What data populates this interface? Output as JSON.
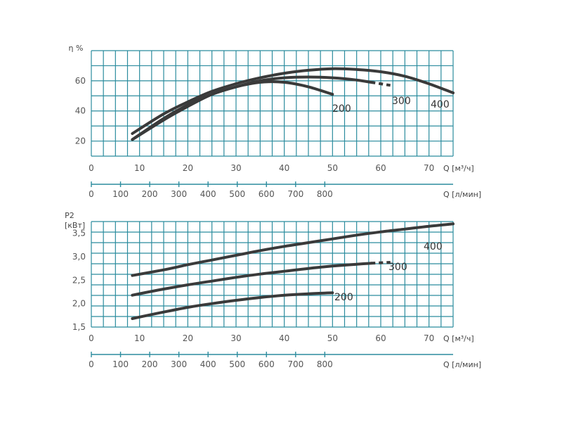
{
  "colors": {
    "grid": "#2b8c9e",
    "curve": "#3a3a3a",
    "text": "#555555"
  },
  "chart_data": [
    {
      "type": "line",
      "title": "",
      "ylabel": "η %",
      "xlabel": "Q [м³/ч]",
      "xlabel2": "Q [л/мин]",
      "xlim": [
        0,
        75
      ],
      "ylim": [
        10,
        80
      ],
      "grid": true,
      "yticks": [
        20,
        40,
        60
      ],
      "xticks": [
        0,
        10,
        20,
        30,
        40,
        50,
        60,
        70
      ],
      "xticks2": [
        0,
        100,
        200,
        300,
        400,
        500,
        600,
        700,
        800
      ],
      "series": [
        {
          "name": "200",
          "x": [
            8.5,
            15,
            20,
            25,
            30,
            35,
            40,
            45,
            50
          ],
          "y": [
            21,
            34,
            43,
            51,
            56,
            59,
            59,
            56,
            51
          ]
        },
        {
          "name": "300",
          "x": [
            8.5,
            15,
            20,
            25,
            30,
            35,
            40,
            45,
            50,
            55,
            58,
            62
          ],
          "y": [
            21,
            35,
            44,
            51,
            56,
            60,
            62,
            62.5,
            62,
            60.5,
            59,
            57
          ],
          "dashed_from": 58
        },
        {
          "name": "400",
          "x": [
            8.5,
            15,
            20,
            25,
            30,
            35,
            40,
            45,
            50,
            55,
            60,
            65,
            70,
            75
          ],
          "y": [
            25,
            38,
            46,
            53,
            58,
            62,
            65,
            67,
            68,
            67.5,
            66,
            63,
            58,
            52
          ]
        }
      ]
    },
    {
      "type": "line",
      "title": "",
      "ylabel": "P2",
      "ylabel_unit": "[кВт]",
      "xlabel": "Q [м³/ч]",
      "xlabel2": "Q [л/мин]",
      "xlim": [
        0,
        75
      ],
      "ylim": [
        1.5,
        3.75
      ],
      "grid": true,
      "yticks": [
        "1,5",
        "2,0",
        "2,5",
        "3,0",
        "3,5"
      ],
      "xticks": [
        0,
        10,
        20,
        30,
        40,
        50,
        60,
        70
      ],
      "xticks2": [
        0,
        100,
        200,
        300,
        400,
        500,
        600,
        700,
        800
      ],
      "series": [
        {
          "name": "200",
          "x": [
            8.5,
            15,
            20,
            25,
            30,
            35,
            40,
            45,
            50
          ],
          "y": [
            1.68,
            1.82,
            1.92,
            2.0,
            2.07,
            2.13,
            2.18,
            2.21,
            2.23
          ]
        },
        {
          "name": "300",
          "x": [
            8.5,
            15,
            20,
            25,
            30,
            35,
            40,
            45,
            50,
            55,
            58,
            62
          ],
          "y": [
            2.18,
            2.31,
            2.4,
            2.48,
            2.56,
            2.63,
            2.69,
            2.75,
            2.8,
            2.84,
            2.86,
            2.88
          ],
          "dashed_from": 58
        },
        {
          "name": "400",
          "x": [
            8.5,
            15,
            20,
            25,
            30,
            35,
            40,
            45,
            50,
            55,
            60,
            65,
            70,
            75
          ],
          "y": [
            2.6,
            2.72,
            2.83,
            2.93,
            3.03,
            3.13,
            3.22,
            3.3,
            3.38,
            3.46,
            3.53,
            3.59,
            3.65,
            3.7
          ]
        }
      ]
    }
  ]
}
